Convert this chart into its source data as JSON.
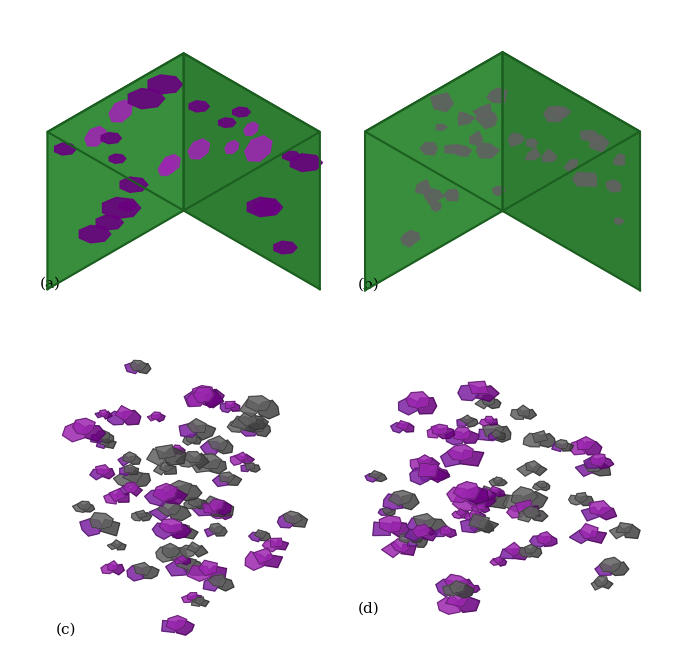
{
  "figure_width": 6.74,
  "figure_height": 6.69,
  "background_color": "#ffffff",
  "panel_labels": [
    "(a)",
    "(b)",
    "(c)",
    "(d)"
  ],
  "label_fontsize": 11,
  "green_color": "#4caf50",
  "green_dark": "#388e3c",
  "green_light": "#66bb6a",
  "purple_color": "#9c27b0",
  "purple_dark": "#6a0080",
  "purple_light": "#ba68c8",
  "gray_color": "#757575",
  "gray_dark": "#424242",
  "gray_light": "#9e9e9e"
}
